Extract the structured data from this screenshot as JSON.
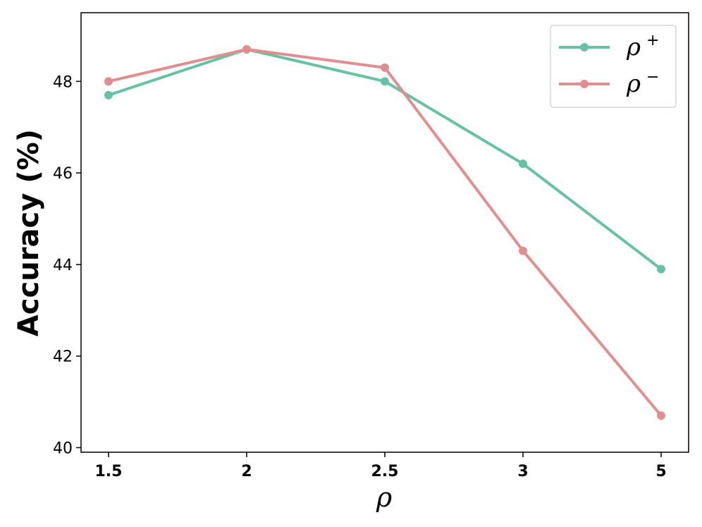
{
  "chart_data": {
    "type": "line",
    "categories": [
      "1.5",
      "2",
      "2.5",
      "3",
      "5"
    ],
    "series": [
      {
        "name": "ρ",
        "name_sup": "+",
        "color": "#66c2a5",
        "values": [
          47.7,
          48.7,
          48.0,
          46.2,
          43.9
        ]
      },
      {
        "name": "ρ",
        "name_sup": "−",
        "color": "#e38e8e",
        "values": [
          48.0,
          48.7,
          48.3,
          44.3,
          40.7
        ]
      }
    ],
    "xlabel": "ρ",
    "ylabel": "Accuracy (%)",
    "ylim": [
      39.9,
      49.5
    ],
    "yticks": [
      "40",
      "42",
      "44",
      "46",
      "48"
    ],
    "legend": "top-right",
    "grid": false
  }
}
